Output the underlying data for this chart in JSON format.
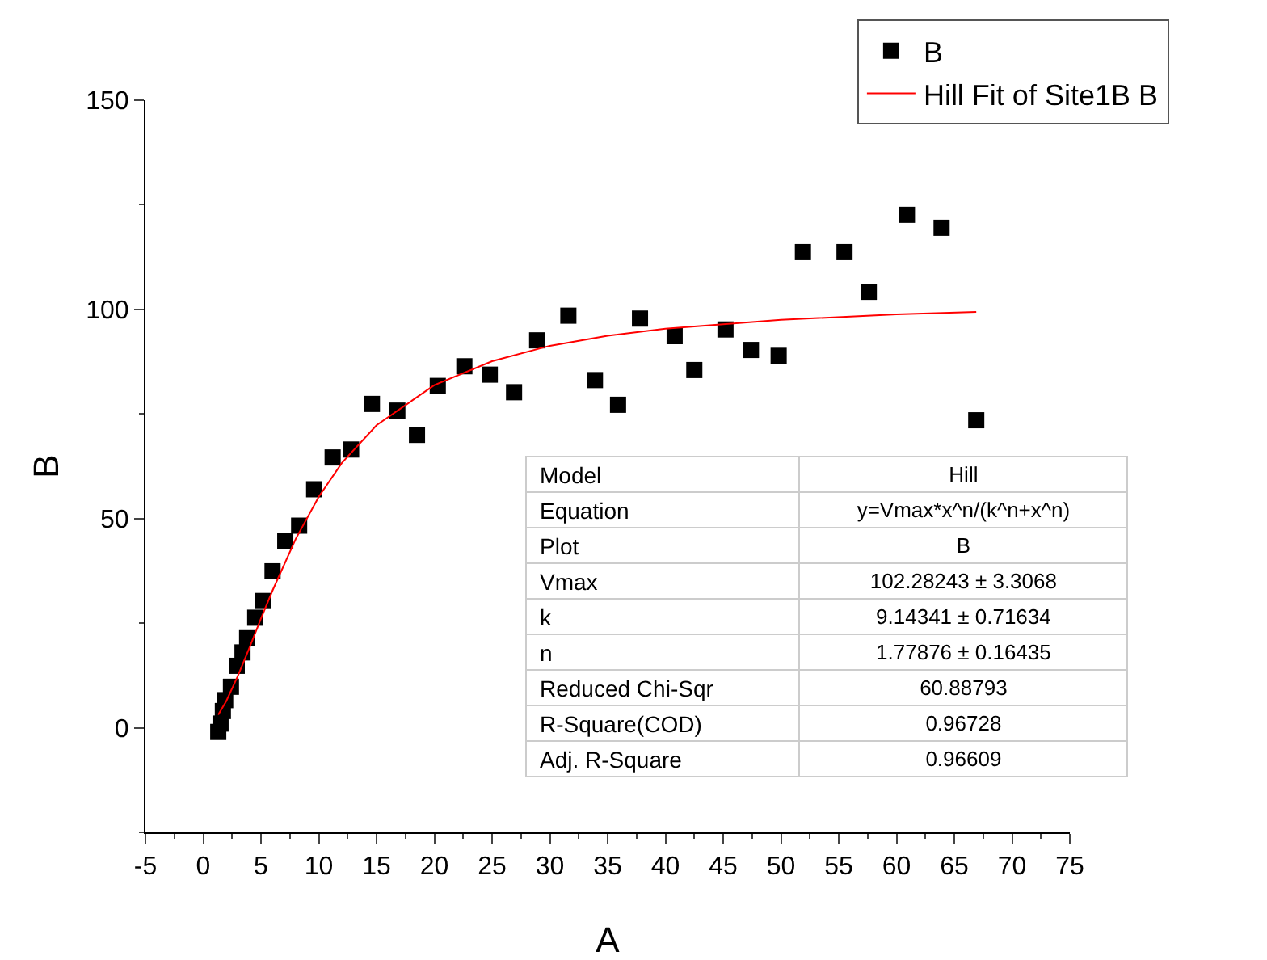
{
  "chart_data": {
    "type": "scatter",
    "xlabel": "A",
    "ylabel": "B",
    "xlim": [
      -5,
      75
    ],
    "xticks": [
      -5,
      0,
      5,
      10,
      15,
      20,
      25,
      30,
      35,
      40,
      45,
      50,
      55,
      60,
      65,
      70,
      75
    ],
    "ylim": [
      -25,
      150
    ],
    "yticks": [
      0,
      50,
      100,
      150
    ],
    "grid": false,
    "legend": "top right",
    "marker": "square",
    "series": [
      {
        "name": "B",
        "color": "#000000",
        "x": [
          1.3,
          1.5,
          1.7,
          1.9,
          2.4,
          2.9,
          3.4,
          3.8,
          4.5,
          5.2,
          6.0,
          7.1,
          8.3,
          9.6,
          11.2,
          12.8,
          14.6,
          16.8,
          18.5,
          20.3,
          22.6,
          24.8,
          26.9,
          28.9,
          31.6,
          33.9,
          35.9,
          37.8,
          40.8,
          42.5,
          45.2,
          47.4,
          49.8,
          51.9,
          55.5,
          57.6,
          60.9,
          63.9,
          66.9
        ],
        "values": [
          -1,
          1,
          4,
          6.6,
          9.8,
          14.8,
          18,
          21.4,
          26.3,
          30.3,
          37.4,
          44.7,
          48.3,
          57,
          64.6,
          66.5,
          77.4,
          75.8,
          70,
          81.7,
          86.4,
          84.4,
          80.2,
          92.6,
          98.5,
          83.1,
          77.2,
          97.8,
          93.6,
          85.5,
          95.2,
          90.3,
          88.9,
          113.7,
          113.7,
          104.2,
          122.6,
          119.5,
          73.5
        ]
      },
      {
        "name": "Hill Fit of Site1B B",
        "type": "line",
        "color": "#ff0000",
        "line_style": "solid",
        "marker": "none",
        "x": [
          1.3,
          2,
          3,
          4,
          5,
          6,
          8,
          10,
          12,
          15,
          20,
          25,
          30,
          35,
          40,
          50,
          60,
          66.9
        ],
        "values": [
          3.1,
          6.4,
          12.4,
          19.1,
          26.1,
          32.8,
          45.1,
          55.2,
          63.3,
          72.3,
          81.9,
          87.6,
          91.3,
          93.7,
          95.4,
          97.5,
          98.8,
          99.4
        ]
      }
    ],
    "annotations": [
      "Model",
      "Hill",
      "Equation",
      "y=Vmax*x^n/(k^n+x^n)",
      "Plot",
      "B",
      "Vmax",
      "102.28243 ± 3.3068",
      "k",
      "9.14341 ± 0.71634",
      "n",
      "1.77876 ± 0.16435",
      "Reduced Chi-Sqr",
      "60.88793",
      "R-Square(COD)",
      "0.96728",
      "Adj. R-Square",
      "0.96609"
    ]
  }
}
